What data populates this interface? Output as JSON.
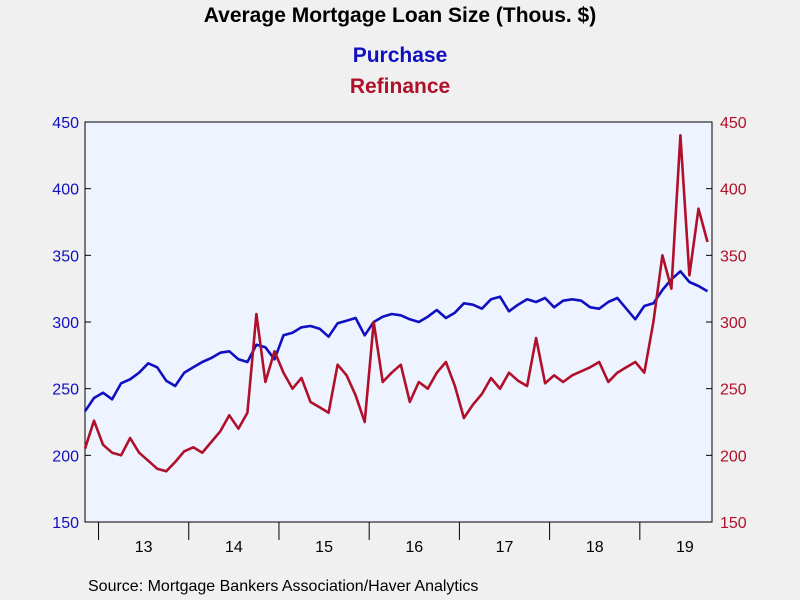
{
  "chart_data": {
    "type": "line",
    "title": "Average Mortgage Loan Size (Thous. $)",
    "series": [
      {
        "name": "Purchase",
        "color": "#1010c0",
        "axis": "left",
        "x": [
          2012.35,
          2012.45,
          2012.55,
          2012.65,
          2012.75,
          2012.85,
          2012.95,
          2013.05,
          2013.15,
          2013.25,
          2013.35,
          2013.45,
          2013.55,
          2013.65,
          2013.75,
          2013.85,
          2013.95,
          2014.05,
          2014.15,
          2014.25,
          2014.35,
          2014.45,
          2014.55,
          2014.65,
          2014.75,
          2014.85,
          2014.95,
          2015.05,
          2015.15,
          2015.25,
          2015.35,
          2015.45,
          2015.55,
          2015.65,
          2015.75,
          2015.85,
          2015.95,
          2016.05,
          2016.15,
          2016.25,
          2016.35,
          2016.45,
          2016.55,
          2016.65,
          2016.75,
          2016.85,
          2016.95,
          2017.05,
          2017.15,
          2017.25,
          2017.35,
          2017.45,
          2017.55,
          2017.65,
          2017.75,
          2017.85,
          2017.95,
          2018.05,
          2018.15,
          2018.25,
          2018.35,
          2018.45,
          2018.55,
          2018.65,
          2018.75,
          2018.85,
          2018.95,
          2019.05,
          2019.15,
          2019.25
        ],
        "values": [
          233,
          243,
          247,
          242,
          254,
          257,
          262,
          269,
          266,
          256,
          252,
          262,
          266,
          270,
          273,
          277,
          278,
          272,
          270,
          283,
          281,
          272,
          290,
          292,
          296,
          297,
          295,
          289,
          299,
          301,
          303,
          290,
          300,
          304,
          306,
          305,
          302,
          300,
          304,
          309,
          303,
          307,
          314,
          313,
          310,
          317,
          319,
          308,
          313,
          317,
          315,
          318,
          311,
          316,
          317,
          316,
          311,
          310,
          315,
          318,
          310,
          302,
          312,
          314,
          324,
          332,
          338,
          330,
          327,
          323
        ],
        "ylim": [
          150,
          450
        ]
      },
      {
        "name": "Refinance",
        "color": "#b0102a",
        "axis": "right",
        "x": [
          2012.35,
          2012.45,
          2012.55,
          2012.65,
          2012.75,
          2012.85,
          2012.95,
          2013.05,
          2013.15,
          2013.25,
          2013.35,
          2013.45,
          2013.55,
          2013.65,
          2013.75,
          2013.85,
          2013.95,
          2014.05,
          2014.15,
          2014.25,
          2014.35,
          2014.45,
          2014.55,
          2014.65,
          2014.75,
          2014.85,
          2014.95,
          2015.05,
          2015.15,
          2015.25,
          2015.35,
          2015.45,
          2015.55,
          2015.65,
          2015.75,
          2015.85,
          2015.95,
          2016.05,
          2016.15,
          2016.25,
          2016.35,
          2016.45,
          2016.55,
          2016.65,
          2016.75,
          2016.85,
          2016.95,
          2017.05,
          2017.15,
          2017.25,
          2017.35,
          2017.45,
          2017.55,
          2017.65,
          2017.75,
          2017.85,
          2017.95,
          2018.05,
          2018.15,
          2018.25,
          2018.35,
          2018.45,
          2018.55,
          2018.65,
          2018.75,
          2018.85,
          2018.95,
          2019.05,
          2019.15,
          2019.25
        ],
        "values": [
          205,
          226,
          208,
          202,
          200,
          213,
          202,
          196,
          190,
          188,
          195,
          203,
          206,
          202,
          210,
          218,
          230,
          220,
          232,
          306,
          255,
          278,
          262,
          250,
          258,
          240,
          236,
          232,
          268,
          260,
          245,
          225,
          300,
          255,
          262,
          268,
          240,
          255,
          250,
          262,
          270,
          252,
          228,
          238,
          246,
          258,
          250,
          262,
          256,
          252,
          288,
          254,
          260,
          255,
          260,
          263,
          266,
          270,
          255,
          262,
          266,
          270,
          262,
          300,
          350,
          325,
          440,
          335,
          385,
          360
        ],
        "ylim": [
          150,
          450
        ]
      }
    ],
    "x_ticks": [
      "13",
      "14",
      "15",
      "16",
      "17",
      "18",
      "19"
    ],
    "x_tick_values": [
      2013,
      2014,
      2015,
      2016,
      2017,
      2018,
      2019
    ],
    "xlim": [
      2012.35,
      2019.3
    ],
    "y_ticks_left": [
      150,
      200,
      250,
      300,
      350,
      400,
      450
    ],
    "y_ticks_right": [
      150,
      200,
      250,
      300,
      350,
      400,
      450
    ],
    "left_axis_color": "#1010c0",
    "right_axis_color": "#b0102a",
    "grid": false,
    "legend_placement": "top-center",
    "source": "Source:  Mortgage Bankers Association/Haver Analytics"
  }
}
